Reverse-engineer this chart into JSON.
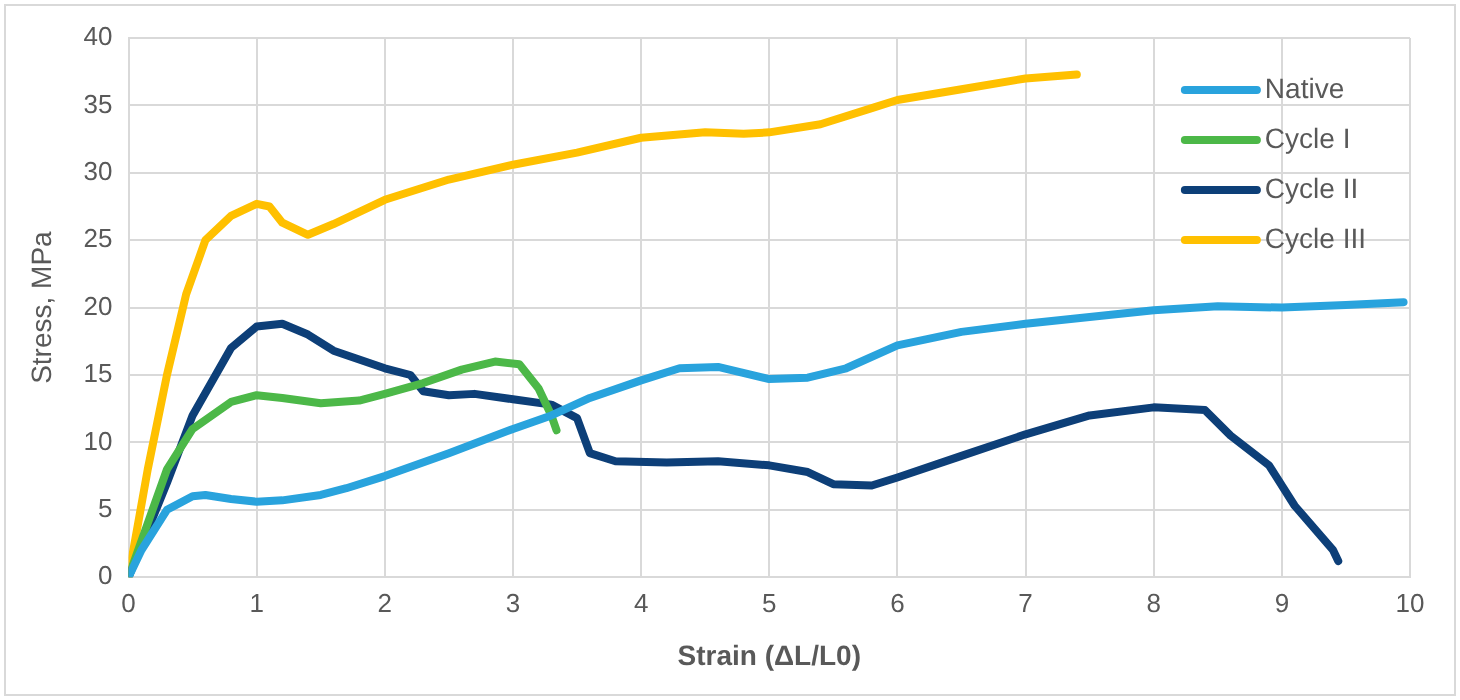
{
  "chart_data": {
    "type": "line",
    "xlabel": "Strain (ΔL/L0)",
    "ylabel": "Stress, MPa",
    "xlim": [
      0,
      10
    ],
    "xticks": [
      0,
      1,
      2,
      3,
      4,
      5,
      6,
      7,
      8,
      9,
      10
    ],
    "ylim": [
      0,
      40
    ],
    "yticks": [
      0,
      5,
      10,
      15,
      20,
      25,
      30,
      35,
      40
    ],
    "grid": true,
    "legend": "top right",
    "marker": "none",
    "line_style": "solid",
    "series": [
      {
        "name": "Native",
        "color": "#29a3dd",
        "x": [
          0,
          0.1,
          0.3,
          0.5,
          0.6,
          0.8,
          1,
          1.2,
          1.5,
          1.7,
          2,
          2.5,
          3,
          3.3,
          3.6,
          4,
          4.3,
          4.6,
          5,
          5.3,
          5.6,
          6,
          6.5,
          7,
          7.5,
          8,
          8.5,
          9,
          9.5,
          9.95
        ],
        "values": [
          0,
          2,
          5,
          6,
          6.1,
          5.8,
          5.6,
          5.7,
          6.1,
          6.6,
          7.5,
          9.2,
          11,
          12,
          13.3,
          14.6,
          15.5,
          15.6,
          14.7,
          14.8,
          15.5,
          17.2,
          18.2,
          18.8,
          19.3,
          19.8,
          20.1,
          20,
          20.2,
          20.4
        ]
      },
      {
        "name": "Cycle I",
        "color": "#4cb848",
        "x": [
          0,
          0.15,
          0.3,
          0.5,
          0.8,
          1,
          1.2,
          1.5,
          1.8,
          2,
          2.3,
          2.6,
          2.86,
          3.05,
          3.2,
          3.3,
          3.34
        ],
        "values": [
          0,
          4,
          8,
          11,
          13,
          13.5,
          13.3,
          12.9,
          13.1,
          13.6,
          14.4,
          15.4,
          16,
          15.8,
          14,
          12,
          10.9
        ]
      },
      {
        "name": "Cycle II",
        "color": "#0d3f78",
        "x": [
          0,
          0.3,
          0.5,
          0.8,
          1,
          1.2,
          1.4,
          1.6,
          2,
          2.2,
          2.3,
          2.5,
          2.7,
          3,
          3.3,
          3.5,
          3.6,
          3.8,
          4.2,
          4.6,
          5,
          5.3,
          5.5,
          5.8,
          6,
          6.5,
          7,
          7.5,
          8,
          8.4,
          8.6,
          8.9,
          9.1,
          9.4,
          9.44
        ],
        "values": [
          0,
          7,
          12,
          17,
          18.6,
          18.8,
          18,
          16.8,
          15.5,
          15,
          13.8,
          13.5,
          13.6,
          13.2,
          12.8,
          11.8,
          9.2,
          8.6,
          8.5,
          8.6,
          8.3,
          7.8,
          6.9,
          6.8,
          7.4,
          9,
          10.6,
          12,
          12.6,
          12.4,
          10.5,
          8.3,
          5.3,
          2,
          1.2
        ]
      },
      {
        "name": "Cycle III",
        "color": "#ffc000",
        "x": [
          0,
          0.15,
          0.3,
          0.45,
          0.6,
          0.8,
          1,
          1.1,
          1.2,
          1.4,
          1.6,
          2,
          2.5,
          3,
          3.5,
          4,
          4.5,
          4.8,
          5,
          5.4,
          5.8,
          6,
          6.5,
          7,
          7.4
        ],
        "values": [
          0,
          8,
          15,
          21,
          25,
          26.8,
          27.7,
          27.5,
          26.3,
          25.4,
          26.2,
          28,
          29.5,
          30.6,
          31.5,
          32.6,
          33,
          32.9,
          33,
          33.6,
          34.8,
          35.4,
          36.2,
          37,
          37.3
        ]
      }
    ]
  }
}
